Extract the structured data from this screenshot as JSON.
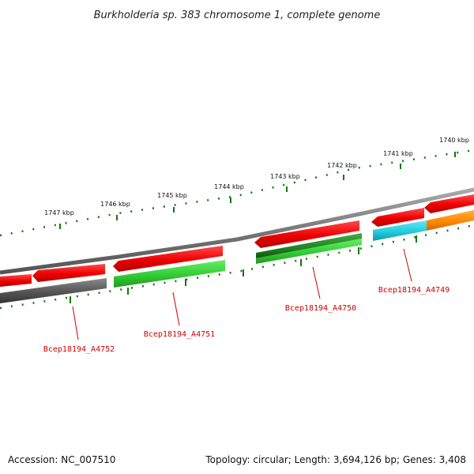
{
  "title": "Burkholderia sp. 383 chromosome 1, complete genome",
  "footer": {
    "accession": "Accession: NC_007510",
    "summary": "Topology: circular; Length: 3,694,126 bp; Genes: 3,408"
  },
  "kbp_labels": [
    "1740 kbp",
    "1741 kbp",
    "1742 kbp",
    "1743 kbp",
    "1744 kbp",
    "1745 kbp",
    "1746 kbp",
    "1747 kbp"
  ],
  "gene_labels": [
    "Bcep18194_A4749",
    "Bcep18194_A4750",
    "Bcep18194_A4751",
    "Bcep18194_A4752"
  ],
  "colors": {
    "backbone": "#7a7a7a",
    "feature_red": "#ee1111",
    "gene_green": "#33cc33",
    "gene_darkgreen": "#228822",
    "gene_cyan": "#22ccdd",
    "gene_orange": "#ff8800",
    "gene_gray": "#555555",
    "tick": "#117711",
    "label_red": "#cc0000"
  }
}
